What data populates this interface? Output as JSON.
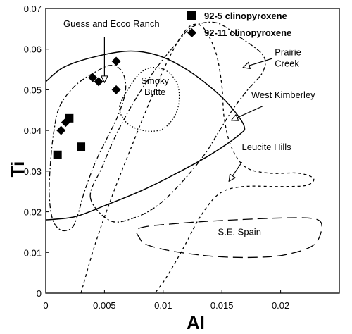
{
  "chart_data": {
    "type": "scatter",
    "xlabel": "Al",
    "ylabel": "Ti",
    "xlim": [
      0,
      0.025
    ],
    "ylim": [
      0,
      0.07
    ],
    "x_ticks": [
      "0",
      "0.005",
      "0.01",
      "0.015",
      "0.02"
    ],
    "y_ticks": [
      "0",
      "0.01",
      "0.02",
      "0.03",
      "0.04",
      "0.05",
      "0.06",
      "0.07"
    ],
    "grid": false,
    "legend_position": "top-center",
    "series": [
      {
        "name": "92-5 clinopyroxene",
        "marker": "square",
        "color": "#000000",
        "points": [
          {
            "x": 0.001,
            "y": 0.034
          },
          {
            "x": 0.002,
            "y": 0.043
          },
          {
            "x": 0.003,
            "y": 0.036
          }
        ]
      },
      {
        "name": "92-11 clinopyroxene",
        "marker": "diamond",
        "color": "#000000",
        "points": [
          {
            "x": 0.0013,
            "y": 0.04
          },
          {
            "x": 0.0017,
            "y": 0.042
          },
          {
            "x": 0.004,
            "y": 0.053
          },
          {
            "x": 0.0045,
            "y": 0.052
          },
          {
            "x": 0.006,
            "y": 0.057
          },
          {
            "x": 0.006,
            "y": 0.05
          }
        ]
      }
    ],
    "regions": [
      {
        "label": "West Kimberley",
        "style": "solid",
        "label_at": {
          "x": 0.0175,
          "y": 0.048
        },
        "arrow_from": {
          "x": 0.0185,
          "y": 0.046
        },
        "arrow_to": {
          "x": 0.0158,
          "y": 0.0425
        },
        "path": [
          {
            "x": 0,
            "y": 0.052
          },
          {
            "x": 0.0015,
            "y": 0.0555
          },
          {
            "x": 0.004,
            "y": 0.058
          },
          {
            "x": 0.007,
            "y": 0.0595
          },
          {
            "x": 0.0095,
            "y": 0.0585
          },
          {
            "x": 0.012,
            "y": 0.055
          },
          {
            "x": 0.0145,
            "y": 0.0495
          },
          {
            "x": 0.016,
            "y": 0.045
          },
          {
            "x": 0.0169,
            "y": 0.041
          },
          {
            "x": 0.0165,
            "y": 0.039
          },
          {
            "x": 0.014,
            "y": 0.034
          },
          {
            "x": 0.0105,
            "y": 0.0285
          },
          {
            "x": 0.008,
            "y": 0.025
          },
          {
            "x": 0.005,
            "y": 0.0215
          },
          {
            "x": 0.0025,
            "y": 0.0188
          },
          {
            "x": 0,
            "y": 0.018
          }
        ]
      },
      {
        "label": "Guess and Ecco Ranch",
        "style": "dashdot",
        "label_at": {
          "x": 0.0015,
          "y": 0.0655
        },
        "arrow_from": {
          "x": 0.005,
          "y": 0.063
        },
        "arrow_to": {
          "x": 0.005,
          "y": 0.0518
        },
        "path": [
          {
            "x": 0.0012,
            "y": 0.046
          },
          {
            "x": 0.0025,
            "y": 0.051
          },
          {
            "x": 0.004,
            "y": 0.054
          },
          {
            "x": 0.0055,
            "y": 0.056
          },
          {
            "x": 0.0065,
            "y": 0.0545
          },
          {
            "x": 0.0068,
            "y": 0.05
          },
          {
            "x": 0.0062,
            "y": 0.044
          },
          {
            "x": 0.0052,
            "y": 0.038
          },
          {
            "x": 0.0042,
            "y": 0.032
          },
          {
            "x": 0.0033,
            "y": 0.025
          },
          {
            "x": 0.0027,
            "y": 0.019
          },
          {
            "x": 0.0022,
            "y": 0.016
          },
          {
            "x": 0.0013,
            "y": 0.0155
          },
          {
            "x": 0.0006,
            "y": 0.018
          },
          {
            "x": 0.0003,
            "y": 0.024
          },
          {
            "x": 0.0004,
            "y": 0.032
          },
          {
            "x": 0.0007,
            "y": 0.04
          }
        ]
      },
      {
        "label": "Smoky Butte",
        "style": "dotted",
        "label_at": {
          "x": 0.0093,
          "y": 0.0515
        },
        "label_line2": "Butte",
        "path": [
          {
            "x": 0.0063,
            "y": 0.046
          },
          {
            "x": 0.0072,
            "y": 0.051
          },
          {
            "x": 0.0082,
            "y": 0.0545
          },
          {
            "x": 0.0093,
            "y": 0.0555
          },
          {
            "x": 0.0105,
            "y": 0.0542
          },
          {
            "x": 0.0113,
            "y": 0.0505
          },
          {
            "x": 0.0112,
            "y": 0.045
          },
          {
            "x": 0.0102,
            "y": 0.0408
          },
          {
            "x": 0.009,
            "y": 0.0398
          },
          {
            "x": 0.0077,
            "y": 0.0405
          },
          {
            "x": 0.0067,
            "y": 0.0425
          }
        ]
      },
      {
        "label": "Prairie Creek",
        "style": "dashdot",
        "label_at": {
          "x": 0.0195,
          "y": 0.0585
        },
        "label_line2": "Creek",
        "arrow_from": {
          "x": 0.0193,
          "y": 0.0577
        },
        "arrow_to": {
          "x": 0.0168,
          "y": 0.0555
        },
        "path": [
          {
            "x": 0.0038,
            "y": 0.0235
          },
          {
            "x": 0.0048,
            "y": 0.031
          },
          {
            "x": 0.006,
            "y": 0.039
          },
          {
            "x": 0.0075,
            "y": 0.047
          },
          {
            "x": 0.0092,
            "y": 0.0545
          },
          {
            "x": 0.011,
            "y": 0.061
          },
          {
            "x": 0.0125,
            "y": 0.0655
          },
          {
            "x": 0.0145,
            "y": 0.0665
          },
          {
            "x": 0.0165,
            "y": 0.063
          },
          {
            "x": 0.0185,
            "y": 0.0585
          },
          {
            "x": 0.0185,
            "y": 0.0545
          },
          {
            "x": 0.0172,
            "y": 0.05
          },
          {
            "x": 0.016,
            "y": 0.0455
          },
          {
            "x": 0.0148,
            "y": 0.04
          },
          {
            "x": 0.0135,
            "y": 0.034
          },
          {
            "x": 0.0115,
            "y": 0.027
          },
          {
            "x": 0.0095,
            "y": 0.0215
          },
          {
            "x": 0.0075,
            "y": 0.0185
          },
          {
            "x": 0.0055,
            "y": 0.0178
          }
        ]
      },
      {
        "label": "Leucite Hills",
        "style": "dashed-short",
        "label_at": {
          "x": 0.0167,
          "y": 0.0352
        },
        "arrow_from": {
          "x": 0.0167,
          "y": 0.0322
        },
        "arrow_to": {
          "x": 0.0156,
          "y": 0.0275
        },
        "path": [
          {
            "x": 0.003,
            "y": 0
          },
          {
            "x": 0.0042,
            "y": 0.012
          },
          {
            "x": 0.0058,
            "y": 0.025
          },
          {
            "x": 0.0073,
            "y": 0.036
          },
          {
            "x": 0.0087,
            "y": 0.046
          },
          {
            "x": 0.0102,
            "y": 0.056
          },
          {
            "x": 0.0115,
            "y": 0.063
          },
          {
            "x": 0.0125,
            "y": 0.066
          },
          {
            "x": 0.0135,
            "y": 0.065
          },
          {
            "x": 0.0145,
            "y": 0.059
          },
          {
            "x": 0.015,
            "y": 0.051
          },
          {
            "x": 0.0152,
            "y": 0.043
          },
          {
            "x": 0.0158,
            "y": 0.036
          },
          {
            "x": 0.017,
            "y": 0.031
          },
          {
            "x": 0.019,
            "y": 0.0295
          },
          {
            "x": 0.0215,
            "y": 0.0295
          },
          {
            "x": 0.0228,
            "y": 0.0282
          },
          {
            "x": 0.0222,
            "y": 0.0265
          },
          {
            "x": 0.02,
            "y": 0.0262
          },
          {
            "x": 0.0168,
            "y": 0.0262
          },
          {
            "x": 0.0148,
            "y": 0.0245
          },
          {
            "x": 0.0132,
            "y": 0.019
          },
          {
            "x": 0.0118,
            "y": 0.0115
          },
          {
            "x": 0.0103,
            "y": 0.004
          },
          {
            "x": 0.0093,
            "y": 0
          }
        ]
      },
      {
        "label": "S.E. Spain",
        "style": "dashed-long",
        "label_at": {
          "x": 0.0165,
          "y": 0.0143
        },
        "path": [
          {
            "x": 0.008,
            "y": 0.016
          },
          {
            "x": 0.0115,
            "y": 0.0172
          },
          {
            "x": 0.016,
            "y": 0.018
          },
          {
            "x": 0.0205,
            "y": 0.0185
          },
          {
            "x": 0.023,
            "y": 0.0182
          },
          {
            "x": 0.0235,
            "y": 0.016
          },
          {
            "x": 0.0228,
            "y": 0.0118
          },
          {
            "x": 0.0205,
            "y": 0.0095
          },
          {
            "x": 0.018,
            "y": 0.0088
          },
          {
            "x": 0.0145,
            "y": 0.009
          },
          {
            "x": 0.011,
            "y": 0.0102
          },
          {
            "x": 0.0087,
            "y": 0.0118
          },
          {
            "x": 0.008,
            "y": 0.0135
          }
        ]
      }
    ]
  }
}
